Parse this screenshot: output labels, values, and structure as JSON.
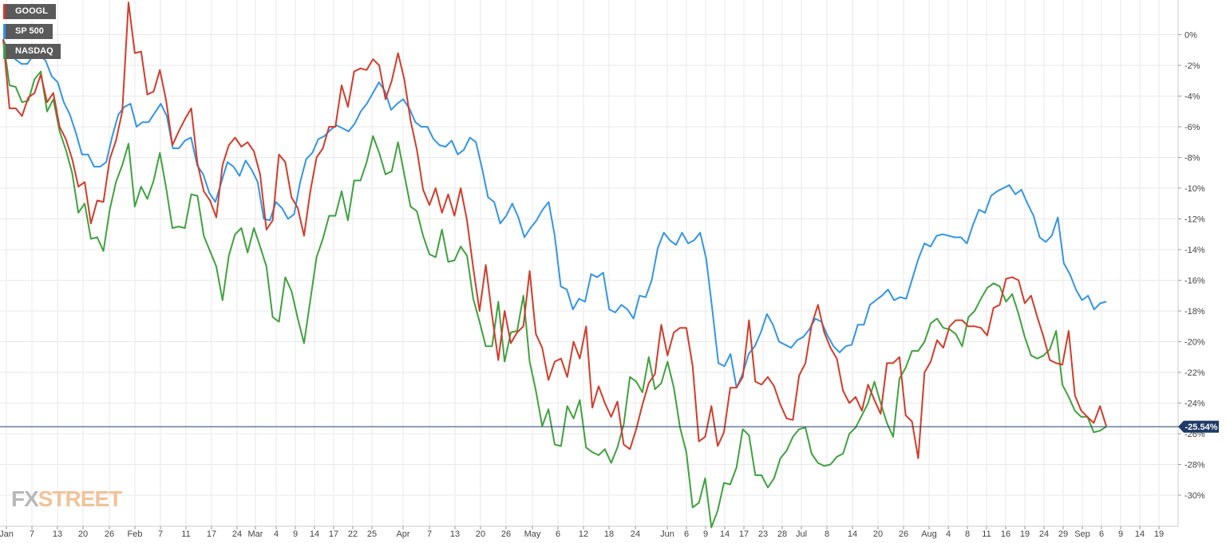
{
  "chart_data": {
    "type": "line",
    "y_ticks": [
      "0%",
      "-2%",
      "-4%",
      "-6%",
      "-8%",
      "-10%",
      "-12%",
      "-14%",
      "-16%",
      "-18%",
      "-20%",
      "-22%",
      "-24%",
      "-26%",
      "-28%",
      "-30%"
    ],
    "y_tick_values": [
      0,
      -2,
      -4,
      -6,
      -8,
      -10,
      -12,
      -14,
      -16,
      -18,
      -20,
      -22,
      -24,
      -26,
      -28,
      -30
    ],
    "ylim": [
      -31.6,
      2.1
    ],
    "x_ticks": [
      "Jan",
      "7",
      "13",
      "20",
      "26",
      "Feb",
      "7",
      "11",
      "17",
      "24",
      "Mar",
      "4",
      "9",
      "14",
      "17",
      "22",
      "25",
      "Apr",
      "7",
      "13",
      "20",
      "26",
      "May",
      "6",
      "12",
      "18",
      "24",
      "Jun",
      "6",
      "9",
      "14",
      "17",
      "23",
      "28",
      "Jul",
      "8",
      "14",
      "20",
      "26",
      "Aug",
      "4",
      "8",
      "11",
      "16",
      "19",
      "24",
      "29",
      "Sep",
      "6",
      "9",
      "14",
      "19"
    ],
    "grid": true,
    "legend_position": "top-left",
    "current_value_label": "-25.54%",
    "current_value": -25.54,
    "series": [
      {
        "name": "GOOGL",
        "color": "#d23c2b",
        "values": [
          -0.3,
          -4.8,
          -4.8,
          -5.3,
          -4.1,
          -3.8,
          -2.6,
          -4.4,
          -3.8,
          -6.0,
          -6.8,
          -8.1,
          -9.9,
          -9.6,
          -12.3,
          -10.8,
          -10.9,
          -8.1,
          -6.9,
          -5.0,
          2.1,
          -1.2,
          -1.1,
          -3.9,
          -3.7,
          -2.3,
          -4.3,
          -7.2,
          -6.3,
          -5.5,
          -4.8,
          -8.4,
          -10.2,
          -10.8,
          -11.9,
          -8.5,
          -7.2,
          -6.7,
          -7.3,
          -7.0,
          -7.6,
          -9.1,
          -12.7,
          -12.1,
          -7.8,
          -8.3,
          -10.6,
          -11.3,
          -13.1,
          -10.2,
          -8.0,
          -7.4,
          -6.0,
          -6.0,
          -3.3,
          -4.7,
          -2.4,
          -2.2,
          -2.3,
          -1.6,
          -2.0,
          -4.2,
          -3.0,
          -1.2,
          -2.9,
          -5.6,
          -7.5,
          -10.1,
          -11.1,
          -10.0,
          -11.6,
          -10.4,
          -11.8,
          -10.0,
          -12.1,
          -15.2,
          -18.0,
          -15.0,
          -18.3,
          -21.2,
          -18.0,
          -20.1,
          -19.4,
          -19.0,
          -15.4,
          -19.5,
          -20.4,
          -22.5,
          -21.3,
          -21.1,
          -22.3,
          -20.0,
          -21.1,
          -19.0,
          -24.3,
          -22.9,
          -24.0,
          -24.9,
          -23.9,
          -26.7,
          -27.0,
          -25.7,
          -24.1,
          -22.7,
          -22.1,
          -18.9,
          -20.9,
          -19.4,
          -19.1,
          -19.1,
          -21.6,
          -26.5,
          -26.2,
          -24.2,
          -26.8,
          -25.9,
          -23.0,
          -23.0,
          -22.3,
          -18.6,
          -22.6,
          -22.8,
          -22.3,
          -22.9,
          -24.1,
          -25.0,
          -25.1,
          -22.2,
          -21.4,
          -18.9,
          -17.6,
          -19.4,
          -20.4,
          -21.1,
          -23.2,
          -24.0,
          -23.6,
          -24.5,
          -22.8,
          -23.8,
          -24.7,
          -21.4,
          -21.4,
          -21.0,
          -24.8,
          -25.2,
          -27.6,
          -22.0,
          -21.3,
          -19.9,
          -20.4,
          -19.0,
          -18.6,
          -18.6,
          -19.0,
          -19.0,
          -19.1,
          -19.6,
          -17.8,
          -17.6,
          -15.9,
          -15.8,
          -16.0,
          -17.5,
          -17.0,
          -18.4,
          -19.7,
          -21.2,
          -21.4,
          -21.5,
          -19.3,
          -23.5,
          -24.5,
          -24.9,
          -25.3,
          -24.2,
          -25.5
        ]
      },
      {
        "name": "SP 500",
        "color": "#3495e6",
        "values": [
          -0.3,
          -1.2,
          -1.6,
          -1.9,
          -1.9,
          -1.3,
          -1.3,
          -1.7,
          -2.7,
          -3.1,
          -4.4,
          -5.2,
          -6.4,
          -7.8,
          -7.8,
          -8.6,
          -8.6,
          -8.3,
          -6.6,
          -5.2,
          -4.7,
          -4.5,
          -6.0,
          -5.7,
          -5.7,
          -5.1,
          -4.5,
          -5.3,
          -7.4,
          -7.4,
          -6.9,
          -6.7,
          -8.5,
          -9.1,
          -10.3,
          -10.9,
          -9.6,
          -8.3,
          -8.6,
          -9.2,
          -8.2,
          -8.8,
          -9.6,
          -12.0,
          -12.1,
          -10.9,
          -11.3,
          -12.0,
          -11.7,
          -9.6,
          -8.1,
          -7.7,
          -6.8,
          -6.6,
          -6.2,
          -5.9,
          -6.1,
          -6.3,
          -5.8,
          -5.0,
          -4.5,
          -3.8,
          -3.1,
          -3.7,
          -4.9,
          -4.5,
          -4.2,
          -4.8,
          -5.7,
          -6.0,
          -6.0,
          -6.8,
          -7.2,
          -7.3,
          -6.9,
          -7.8,
          -7.5,
          -6.7,
          -7.0,
          -8.7,
          -10.6,
          -10.9,
          -12.3,
          -11.8,
          -11.0,
          -11.9,
          -13.2,
          -12.6,
          -12.1,
          -11.4,
          -10.9,
          -13.1,
          -16.4,
          -16.6,
          -17.9,
          -17.2,
          -17.4,
          -15.6,
          -15.8,
          -15.5,
          -17.9,
          -18.1,
          -17.6,
          -17.9,
          -18.5,
          -17.0,
          -17.1,
          -16.0,
          -13.9,
          -12.9,
          -13.4,
          -13.7,
          -12.9,
          -13.6,
          -13.4,
          -12.9,
          -14.6,
          -17.9,
          -21.4,
          -21.6,
          -20.8,
          -23.0,
          -22.1,
          -20.8,
          -20.3,
          -19.4,
          -18.2,
          -18.9,
          -20.0,
          -20.2,
          -20.4,
          -19.9,
          -19.7,
          -19.2,
          -18.5,
          -18.7,
          -19.6,
          -20.3,
          -20.7,
          -20.3,
          -20.2,
          -18.9,
          -18.9,
          -17.6,
          -17.3,
          -17.0,
          -16.6,
          -17.3,
          -17.1,
          -17.2,
          -15.9,
          -14.6,
          -13.6,
          -13.8,
          -13.1,
          -13.0,
          -13.1,
          -13.2,
          -13.2,
          -13.6,
          -12.4,
          -11.4,
          -11.6,
          -10.5,
          -10.2,
          -10.0,
          -9.8,
          -10.4,
          -10.1,
          -11.0,
          -11.8,
          -13.2,
          -13.5,
          -13.1,
          -11.9,
          -14.9,
          -15.6,
          -16.6,
          -17.3,
          -17.0,
          -17.9,
          -17.5,
          -17.4
        ]
      },
      {
        "name": "NASDAQ",
        "color": "#3fa23f",
        "values": [
          -0.3,
          -3.3,
          -3.4,
          -4.4,
          -4.3,
          -2.9,
          -2.4,
          -5.0,
          -4.2,
          -6.3,
          -7.5,
          -9.0,
          -11.6,
          -11.0,
          -13.3,
          -13.2,
          -14.1,
          -11.4,
          -9.6,
          -8.5,
          -7.1,
          -11.2,
          -9.9,
          -10.7,
          -9.5,
          -7.7,
          -10.0,
          -12.6,
          -12.5,
          -12.6,
          -10.4,
          -10.5,
          -13.1,
          -14.1,
          -15.1,
          -17.3,
          -14.4,
          -13.0,
          -12.6,
          -14.2,
          -12.6,
          -13.8,
          -15.1,
          -18.4,
          -18.7,
          -15.8,
          -16.7,
          -18.5,
          -20.1,
          -17.3,
          -14.5,
          -13.3,
          -11.8,
          -11.8,
          -10.2,
          -12.1,
          -9.5,
          -9.5,
          -8.3,
          -6.6,
          -7.7,
          -9.1,
          -8.9,
          -7.0,
          -9.1,
          -11.2,
          -11.5,
          -13.1,
          -14.3,
          -14.5,
          -12.7,
          -14.8,
          -14.7,
          -13.8,
          -14.4,
          -17.2,
          -18.7,
          -20.3,
          -20.3,
          -17.4,
          -21.3,
          -19.4,
          -19.3,
          -17.0,
          -21.3,
          -23.2,
          -25.5,
          -24.4,
          -26.7,
          -26.8,
          -24.2,
          -25.0,
          -23.8,
          -26.9,
          -27.2,
          -27.4,
          -27.0,
          -27.9,
          -26.9,
          -25.4,
          -22.3,
          -22.6,
          -23.3,
          -21.0,
          -23.1,
          -22.7,
          -21.3,
          -23.0,
          -25.6,
          -27.2,
          -30.8,
          -30.5,
          -28.9,
          -32.1,
          -31.0,
          -29.2,
          -29.3,
          -28.2,
          -25.7,
          -26.1,
          -28.7,
          -28.7,
          -29.5,
          -28.9,
          -27.6,
          -27.1,
          -26.2,
          -25.7,
          -25.6,
          -27.3,
          -27.9,
          -28.1,
          -28.0,
          -27.5,
          -27.3,
          -26.0,
          -25.6,
          -24.8,
          -24.0,
          -22.6,
          -24.0,
          -25.3,
          -26.2,
          -22.4,
          -21.7,
          -20.6,
          -20.6,
          -20.0,
          -18.8,
          -18.5,
          -19.1,
          -19.2,
          -19.5,
          -20.3,
          -18.4,
          -18.0,
          -17.2,
          -16.5,
          -16.2,
          -16.4,
          -17.4,
          -16.9,
          -18.2,
          -19.7,
          -20.9,
          -21.1,
          -20.9,
          -20.5,
          -19.3,
          -22.8,
          -23.6,
          -24.5,
          -24.9,
          -24.9,
          -25.9,
          -25.8,
          -25.54
        ]
      }
    ]
  },
  "branding": {
    "logo_fx": "FX",
    "logo_street": "STREET"
  },
  "colors": {
    "price_line": "#1f3a66",
    "grid": "#eaeaea"
  }
}
